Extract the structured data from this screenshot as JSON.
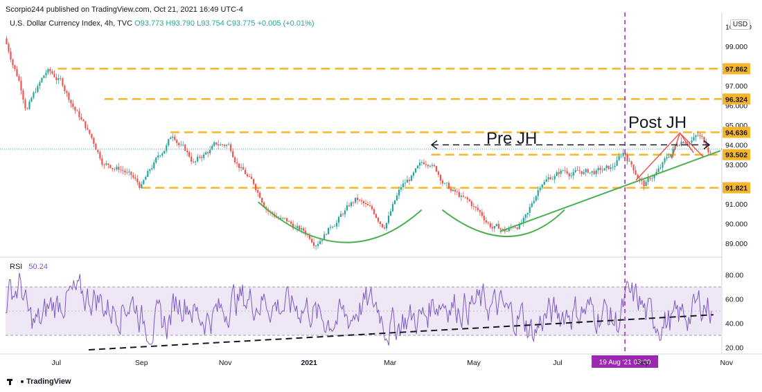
{
  "header": {
    "publisher": "Scorpio244 published on TradingView.com, Oct 21, 2021 16:49 UTC-4"
  },
  "symbol": {
    "name": "U.S. Dollar Currency Index, 4h, TVC",
    "open": "O93.773",
    "high": "H93.790",
    "low": "L93.754",
    "close": "C93.775",
    "change": "+0.005 (+0.01%)"
  },
  "currency_badge": "USD",
  "rsi_panel": {
    "label": "RSI",
    "value": "50.24"
  },
  "footer": {
    "brand": "TradingView"
  },
  "colors": {
    "candle_up": "#26a69a",
    "candle_down": "#ef5350",
    "level_line": "#f7b52c",
    "vertical_marker": "#9c27b0",
    "rsi_line": "#7e57c2",
    "rsi_band": "#ede7f6",
    "trend_green": "#4caf50",
    "wedge_red": "#ef5350"
  },
  "chart_data": [
    {
      "type": "line",
      "title": "U.S. Dollar Currency Index, 4h, TVC",
      "y_ticks": [
        "89.000",
        "90.000",
        "91.000",
        "92.000",
        "93.000",
        "94.000",
        "95.000",
        "96.000",
        "97.000",
        "98.000",
        "99.000",
        "100.000"
      ],
      "ylim": [
        88.5,
        100
      ],
      "x_ticks": [
        "Jul",
        "Sep",
        "Nov",
        "2021",
        "Mar",
        "May",
        "Jul",
        "Sep",
        "Nov"
      ],
      "series": [
        {
          "x": [
            "2020-05-25",
            "2020-06-05",
            "2020-06-10",
            "2020-06-25",
            "2020-07-05",
            "2020-07-20",
            "2020-08-05",
            "2020-08-20",
            "2020-09-01",
            "2020-09-15",
            "2020-09-25",
            "2020-10-10",
            "2020-10-25",
            "2020-11-04",
            "2020-11-20",
            "2020-12-05",
            "2020-12-20",
            "2021-01-06",
            "2021-01-20",
            "2021-02-05",
            "2021-02-25",
            "2021-03-10",
            "2021-03-31",
            "2021-04-15",
            "2021-05-01",
            "2021-05-15",
            "2021-05-25",
            "2021-06-10",
            "2021-06-20",
            "2021-07-05",
            "2021-07-25",
            "2021-08-10",
            "2021-08-19",
            "2021-09-03",
            "2021-09-15",
            "2021-09-30",
            "2021-10-12",
            "2021-10-21"
          ],
          "values": [
            99.4,
            97.3,
            96.0,
            97.7,
            97.2,
            95.3,
            93.2,
            92.8,
            91.8,
            93.4,
            94.6,
            93.1,
            93.9,
            94.0,
            92.2,
            90.7,
            89.9,
            89.2,
            90.2,
            91.2,
            90.0,
            91.8,
            93.2,
            91.7,
            90.8,
            89.9,
            89.6,
            90.3,
            92.2,
            92.7,
            92.6,
            92.7,
            93.6,
            92.0,
            92.8,
            94.3,
            94.5,
            93.775
          ]
        }
      ],
      "horizontal_levels": [
        "97.862",
        "96.324",
        "94.636",
        "93.502",
        "91.821"
      ],
      "annotations": [
        "Pre JH",
        "Post JH"
      ]
    },
    {
      "type": "line",
      "title": "RSI",
      "y_ticks": [
        "20.00",
        "40.00",
        "60.00",
        "80.00"
      ],
      "ylim": [
        15,
        90
      ],
      "band": [
        30,
        70
      ],
      "midline": 50,
      "last_value": 50.24
    }
  ],
  "time_marker": {
    "label": "19 Aug '21   03:00",
    "date": "2021-08-19"
  }
}
